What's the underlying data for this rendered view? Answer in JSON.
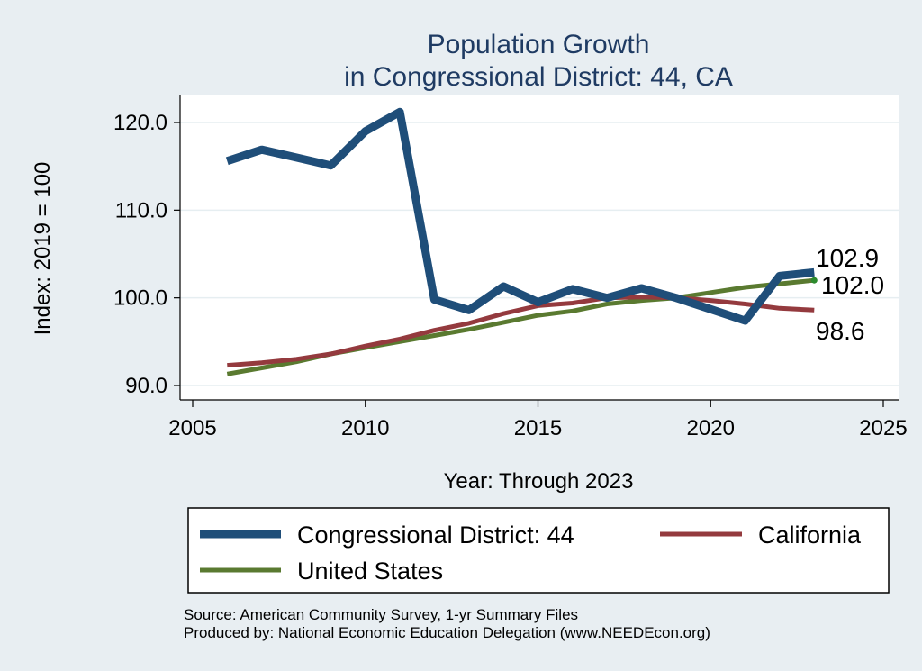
{
  "chart_data": {
    "type": "line",
    "title_line1": "Population Growth",
    "title_line2": "in Congressional District: 44, CA",
    "xlabel": "Year: Through 2023",
    "ylabel": "Index: 2019 = 100",
    "xlim": [
      2005,
      2025
    ],
    "ylim": [
      89,
      123
    ],
    "xticks": [
      2005,
      2010,
      2015,
      2020,
      2025
    ],
    "yticks": [
      90,
      100,
      110,
      120
    ],
    "ytick_labels": [
      "90.0",
      "100.0",
      "110.0",
      "120.0"
    ],
    "grid": true,
    "legend_position": "bottom",
    "x": [
      2006,
      2007,
      2008,
      2009,
      2010,
      2011,
      2012,
      2013,
      2014,
      2015,
      2016,
      2017,
      2018,
      2019,
      2020,
      2021,
      2022,
      2023
    ],
    "series": [
      {
        "name": "Congressional District: 44",
        "color": "#1f4e79",
        "values": [
          115.6,
          116.9,
          116.0,
          115.1,
          119.0,
          121.2,
          99.8,
          98.6,
          101.3,
          99.5,
          101.0,
          100.0,
          101.1,
          100.0,
          98.7,
          97.4,
          102.5,
          102.9
        ],
        "end_label": "102.9"
      },
      {
        "name": "California",
        "color": "#943a3e",
        "values": [
          92.3,
          92.6,
          93.0,
          93.6,
          94.5,
          95.3,
          96.3,
          97.1,
          98.2,
          99.1,
          99.4,
          100.0,
          100.1,
          100.0,
          99.7,
          99.3,
          98.8,
          98.6
        ],
        "end_label": "98.6"
      },
      {
        "name": "United States",
        "color": "#5a7a30",
        "values": [
          91.3,
          92.0,
          92.7,
          93.6,
          94.3,
          95.0,
          95.7,
          96.4,
          97.2,
          98.0,
          98.5,
          99.3,
          99.7,
          100.0,
          100.6,
          101.2,
          101.6,
          102.0
        ],
        "end_label": "102.0"
      }
    ]
  },
  "source_line1": "Source: American Community Survey, 1-yr Summary Files",
  "source_line2": "Produced by: National Economic Education Delegation (www.NEEDEcon.org)"
}
